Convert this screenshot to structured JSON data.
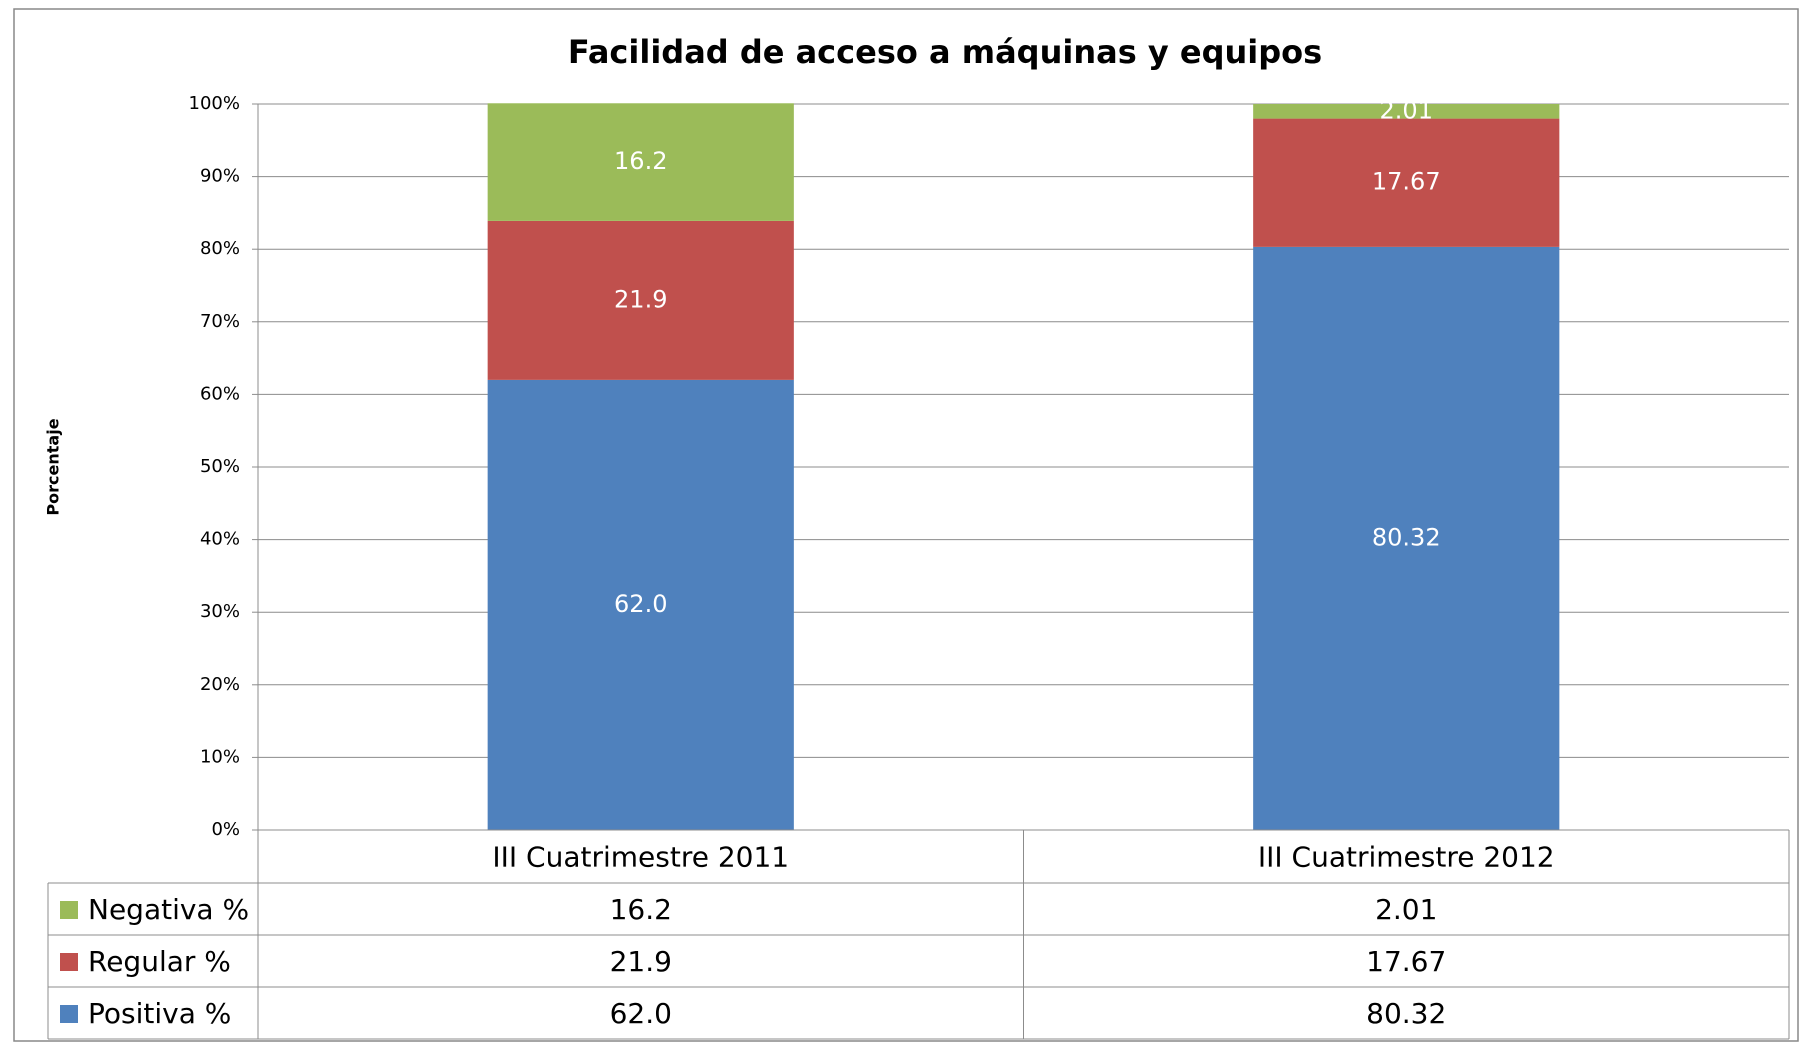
{
  "chart_data": {
    "type": "stacked_bar",
    "title": "Facilidad de acceso a máquinas y equipos",
    "y_label": "Porcentaje",
    "categories": [
      "III Cuatrimestre 2011",
      "III Cuatrimestre 2012"
    ],
    "series": [
      {
        "name": "Positiva %",
        "color": "#4f81bd",
        "values": [
          62.0,
          80.32
        ],
        "value_labels": [
          "62.0",
          "80.32"
        ]
      },
      {
        "name": "Regular %",
        "color": "#c0504d",
        "values": [
          21.9,
          17.67
        ],
        "value_labels": [
          "21.9",
          "17.67"
        ]
      },
      {
        "name": "Negativa %",
        "color": "#9bbb59",
        "values": [
          16.2,
          2.01
        ],
        "value_labels": [
          "16.2",
          "2.01"
        ]
      }
    ],
    "ylim": [
      0,
      100
    ],
    "yticks": [
      {
        "value": 0,
        "label": "0%"
      },
      {
        "value": 10,
        "label": "10%"
      },
      {
        "value": 20,
        "label": "20%"
      },
      {
        "value": 30,
        "label": "30%"
      },
      {
        "value": 40,
        "label": "40%"
      },
      {
        "value": 50,
        "label": "50%"
      },
      {
        "value": 60,
        "label": "60%"
      },
      {
        "value": 70,
        "label": "70%"
      },
      {
        "value": 80,
        "label": "80%"
      },
      {
        "value": 90,
        "label": "90%"
      },
      {
        "value": 100,
        "label": "100%"
      }
    ],
    "grid": true,
    "data_table": true
  }
}
